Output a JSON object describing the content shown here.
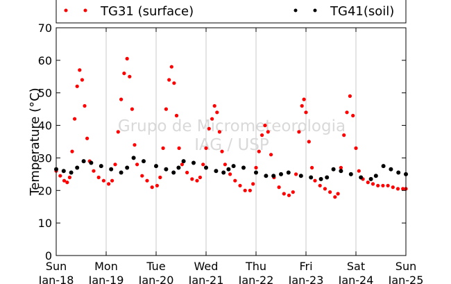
{
  "chart_data": {
    "type": "scatter",
    "title": "",
    "xlabel": "",
    "ylabel": "Temperature (°C)",
    "ylim": [
      0,
      70
    ],
    "xlim": [
      0,
      7
    ],
    "y_ticks": [
      0,
      10,
      20,
      30,
      40,
      50,
      60,
      70
    ],
    "x_ticks": [
      {
        "day": "Sun",
        "date": "Jan-18"
      },
      {
        "day": "Mon",
        "date": "Jan-19"
      },
      {
        "day": "Tue",
        "date": "Jan-20"
      },
      {
        "day": "Wed",
        "date": "Jan-21"
      },
      {
        "day": "Thu",
        "date": "Jan-22"
      },
      {
        "day": "Fri",
        "date": "Jan-23"
      },
      {
        "day": "Sat",
        "date": "Jan-24"
      },
      {
        "day": "Sun",
        "date": "Jan-25"
      }
    ],
    "x_unit": "days from Sun Jan-18 00:00",
    "grid": "vertical",
    "legend_position": "top",
    "watermark": [
      "Grupo de Micrometeorologia",
      "IAG / USP"
    ],
    "series": [
      {
        "name": "TG31 (surface)",
        "color": "#ff0000",
        "points": [
          [
            0.0,
            26
          ],
          [
            0.08,
            24.5
          ],
          [
            0.16,
            23
          ],
          [
            0.22,
            22.5
          ],
          [
            0.27,
            24
          ],
          [
            0.32,
            32
          ],
          [
            0.37,
            42
          ],
          [
            0.42,
            52
          ],
          [
            0.47,
            57
          ],
          [
            0.52,
            54
          ],
          [
            0.57,
            46
          ],
          [
            0.62,
            36
          ],
          [
            0.67,
            29
          ],
          [
            0.75,
            26
          ],
          [
            0.85,
            24
          ],
          [
            0.95,
            23
          ],
          [
            1.05,
            22
          ],
          [
            1.12,
            23
          ],
          [
            1.18,
            28
          ],
          [
            1.24,
            38
          ],
          [
            1.3,
            48
          ],
          [
            1.36,
            56
          ],
          [
            1.42,
            60.5
          ],
          [
            1.47,
            55
          ],
          [
            1.52,
            45
          ],
          [
            1.57,
            34
          ],
          [
            1.62,
            28
          ],
          [
            1.72,
            24.5
          ],
          [
            1.82,
            23
          ],
          [
            1.92,
            21
          ],
          [
            2.02,
            21.5
          ],
          [
            2.08,
            24
          ],
          [
            2.14,
            33
          ],
          [
            2.2,
            45
          ],
          [
            2.26,
            54
          ],
          [
            2.31,
            58
          ],
          [
            2.36,
            53
          ],
          [
            2.41,
            43
          ],
          [
            2.46,
            33
          ],
          [
            2.52,
            28
          ],
          [
            2.62,
            25.5
          ],
          [
            2.72,
            23.5
          ],
          [
            2.82,
            23
          ],
          [
            2.88,
            24
          ],
          [
            2.94,
            28
          ],
          [
            3.0,
            33
          ],
          [
            3.06,
            39
          ],
          [
            3.12,
            42
          ],
          [
            3.17,
            46
          ],
          [
            3.22,
            44
          ],
          [
            3.27,
            38
          ],
          [
            3.32,
            32
          ],
          [
            3.38,
            28
          ],
          [
            3.48,
            25
          ],
          [
            3.58,
            23
          ],
          [
            3.68,
            21.5
          ],
          [
            3.78,
            20
          ],
          [
            3.88,
            20
          ],
          [
            3.94,
            22
          ],
          [
            4.0,
            27
          ],
          [
            4.06,
            32
          ],
          [
            4.12,
            37
          ],
          [
            4.18,
            40
          ],
          [
            4.24,
            38
          ],
          [
            4.3,
            31
          ],
          [
            4.36,
            24
          ],
          [
            4.46,
            21
          ],
          [
            4.56,
            19
          ],
          [
            4.66,
            18.5
          ],
          [
            4.74,
            19.5
          ],
          [
            4.8,
            25
          ],
          [
            4.86,
            38
          ],
          [
            4.92,
            46
          ],
          [
            4.96,
            48
          ],
          [
            5.0,
            44
          ],
          [
            5.06,
            35
          ],
          [
            5.12,
            27
          ],
          [
            5.18,
            23
          ],
          [
            5.28,
            21.5
          ],
          [
            5.38,
            20.5
          ],
          [
            5.48,
            19.5
          ],
          [
            5.58,
            18
          ],
          [
            5.64,
            19
          ],
          [
            5.7,
            27
          ],
          [
            5.76,
            37
          ],
          [
            5.82,
            44
          ],
          [
            5.88,
            49
          ],
          [
            5.94,
            43
          ],
          [
            6.0,
            33
          ],
          [
            6.06,
            26
          ],
          [
            6.14,
            23.5
          ],
          [
            6.24,
            22.5
          ],
          [
            6.34,
            22
          ],
          [
            6.44,
            21.5
          ],
          [
            6.54,
            21.5
          ],
          [
            6.64,
            21.5
          ],
          [
            6.74,
            21
          ],
          [
            6.84,
            20.5
          ],
          [
            6.94,
            20.5
          ],
          [
            7.0,
            20.5
          ]
        ]
      },
      {
        "name": "TG41(soil)",
        "color": "#000000",
        "points": [
          [
            0.0,
            26.5
          ],
          [
            0.15,
            26
          ],
          [
            0.3,
            25.5
          ],
          [
            0.42,
            27
          ],
          [
            0.55,
            29
          ],
          [
            0.7,
            28.5
          ],
          [
            0.9,
            27.5
          ],
          [
            1.1,
            26.5
          ],
          [
            1.3,
            25.5
          ],
          [
            1.42,
            27
          ],
          [
            1.55,
            30
          ],
          [
            1.75,
            29
          ],
          [
            2.0,
            27.5
          ],
          [
            2.2,
            26.5
          ],
          [
            2.35,
            25.5
          ],
          [
            2.45,
            27
          ],
          [
            2.55,
            29
          ],
          [
            2.75,
            28.5
          ],
          [
            3.0,
            27
          ],
          [
            3.2,
            26
          ],
          [
            3.35,
            25.5
          ],
          [
            3.45,
            26.5
          ],
          [
            3.55,
            27.5
          ],
          [
            3.75,
            27
          ],
          [
            4.0,
            25.5
          ],
          [
            4.2,
            24.5
          ],
          [
            4.35,
            24.5
          ],
          [
            4.5,
            25
          ],
          [
            4.65,
            25.5
          ],
          [
            4.9,
            24.5
          ],
          [
            5.1,
            24
          ],
          [
            5.3,
            23.5
          ],
          [
            5.42,
            24
          ],
          [
            5.55,
            26.5
          ],
          [
            5.7,
            26
          ],
          [
            5.9,
            25
          ],
          [
            6.1,
            24
          ],
          [
            6.3,
            23.5
          ],
          [
            6.4,
            24.5
          ],
          [
            6.55,
            27.5
          ],
          [
            6.7,
            26.5
          ],
          [
            6.85,
            25.5
          ],
          [
            7.0,
            25
          ]
        ]
      }
    ]
  }
}
